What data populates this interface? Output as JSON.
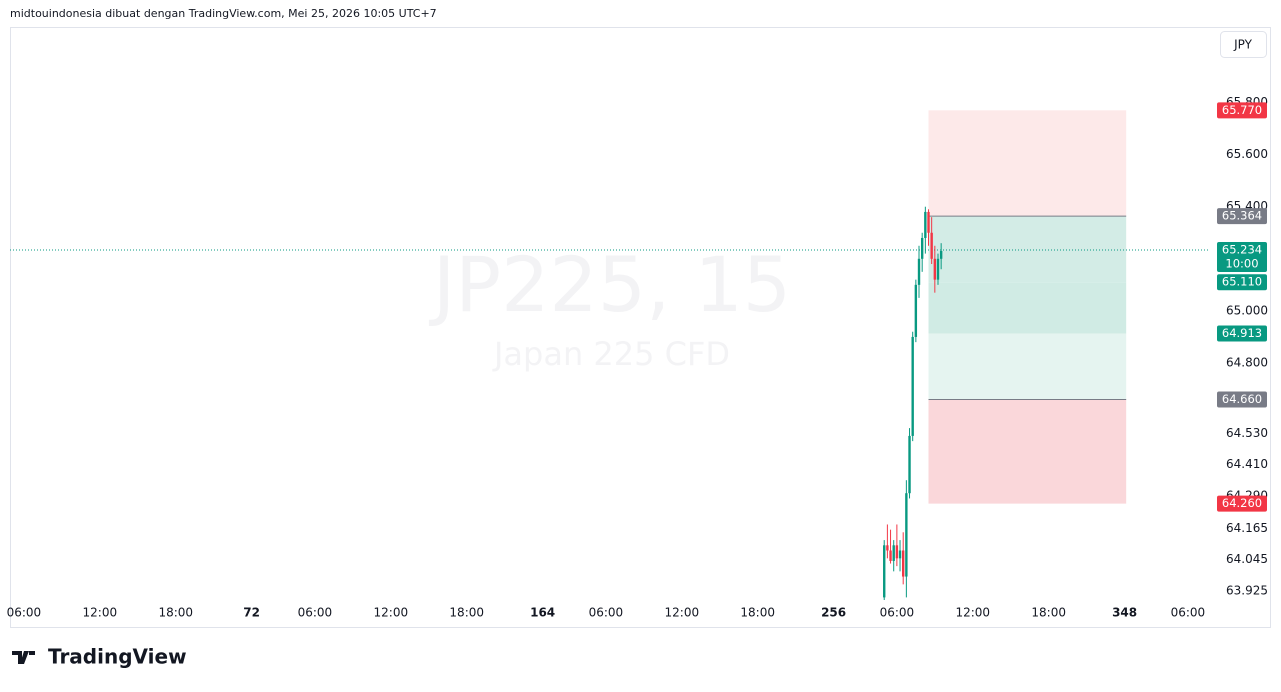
{
  "header": "midtouindonesia dibuat dengan TradingView.com, Mei 25, 2026 10:05 UTC+7",
  "currency_button": "JPY",
  "logo": "TradingView",
  "chart_data": {
    "type": "candlestick",
    "title": "JP225, 15",
    "subtitle": "Japan 225 CFD",
    "up_color": "#089981",
    "down_color": "#f23645",
    "xlim": [
      -4.4,
      375
    ],
    "ylim": [
      63.89,
      66.09
    ],
    "xticks": [
      {
        "value": 0,
        "label": "06:00"
      },
      {
        "value": 24,
        "label": "12:00"
      },
      {
        "value": 48,
        "label": "18:00"
      },
      72,
      {
        "value": 92,
        "label": "06:00"
      },
      {
        "value": 116,
        "label": "12:00"
      },
      {
        "value": 140,
        "label": "18:00"
      },
      164,
      {
        "value": 184,
        "label": "06:00"
      },
      {
        "value": 208,
        "label": "12:00"
      },
      {
        "value": 232,
        "label": "18:00"
      },
      256,
      {
        "value": 276,
        "label": "06:00"
      },
      {
        "value": 300,
        "label": "12:00"
      },
      {
        "value": 324,
        "label": "18:00"
      },
      348,
      {
        "value": 368,
        "label": "06:00"
      }
    ],
    "yticks": [
      {
        "value": 65.8,
        "label": "65.800"
      },
      {
        "value": 65.6,
        "label": "65.600"
      },
      {
        "value": 65.4,
        "label": "65.400"
      },
      {
        "value": 65,
        "label": "65.000"
      },
      {
        "value": 64.8,
        "label": "64.800"
      },
      {
        "value": 64.53,
        "label": "64.530"
      },
      {
        "value": 64.41,
        "label": "64.410"
      },
      {
        "value": 64.29,
        "label": "64.290"
      },
      {
        "value": 64.165,
        "label": "64.165"
      },
      {
        "value": 64.045,
        "label": "64.045"
      },
      {
        "value": 63.925,
        "label": "63.925"
      }
    ],
    "x": [
      272,
      273,
      274,
      275,
      276,
      277,
      278,
      279,
      280,
      281,
      282,
      283,
      284,
      285,
      286,
      287,
      288,
      289,
      290
    ],
    "open": [
      63.9,
      64.1,
      64.08,
      64.04,
      64.1,
      64.05,
      64.08,
      63.98,
      64.3,
      64.52,
      64.9,
      65.1,
      65.2,
      65.28,
      65.38,
      65.3,
      65.2,
      65.12,
      65.2
    ],
    "high": [
      64.12,
      64.18,
      64.16,
      64.12,
      64.18,
      64.12,
      64.15,
      64.35,
      64.55,
      64.92,
      65.12,
      65.25,
      65.3,
      65.4,
      65.39,
      65.36,
      65.25,
      65.22,
      65.26
    ],
    "low": [
      63.89,
      64.05,
      64.03,
      64.0,
      64.02,
      64.0,
      63.95,
      63.9,
      64.28,
      64.5,
      64.88,
      65.05,
      65.15,
      65.22,
      65.25,
      65.18,
      65.07,
      65.1,
      65.16
    ],
    "close": [
      64.1,
      64.08,
      64.04,
      64.1,
      64.05,
      64.08,
      63.98,
      64.3,
      64.52,
      64.9,
      65.1,
      65.2,
      65.28,
      65.38,
      65.3,
      65.2,
      65.12,
      65.2,
      65.23
    ],
    "box_xlim": [
      286,
      348.5
    ],
    "levels": [
      {
        "value": 65.77,
        "label": "65.770",
        "color": "#f23645",
        "fill": "#fde9e9"
      },
      {
        "value": 65.364,
        "label": "65.364",
        "color": "#787b86",
        "fill": "#d3ece6"
      },
      {
        "value": 65.11,
        "label": "65.110",
        "color": "#089981",
        "fill": "#d0ebe4"
      },
      {
        "value": 64.913,
        "label": "64.913",
        "color": "#089981",
        "fill": "#e5f4f0"
      },
      {
        "value": 64.66,
        "label": "64.660",
        "color": "#787b86",
        "fill": "#fad7da"
      },
      {
        "value": 64.26,
        "label": "64.260",
        "color": "#f23645"
      }
    ],
    "last_price": {
      "value": 65.234,
      "label": "65.234",
      "time": "10:00",
      "color": "#089981"
    }
  }
}
